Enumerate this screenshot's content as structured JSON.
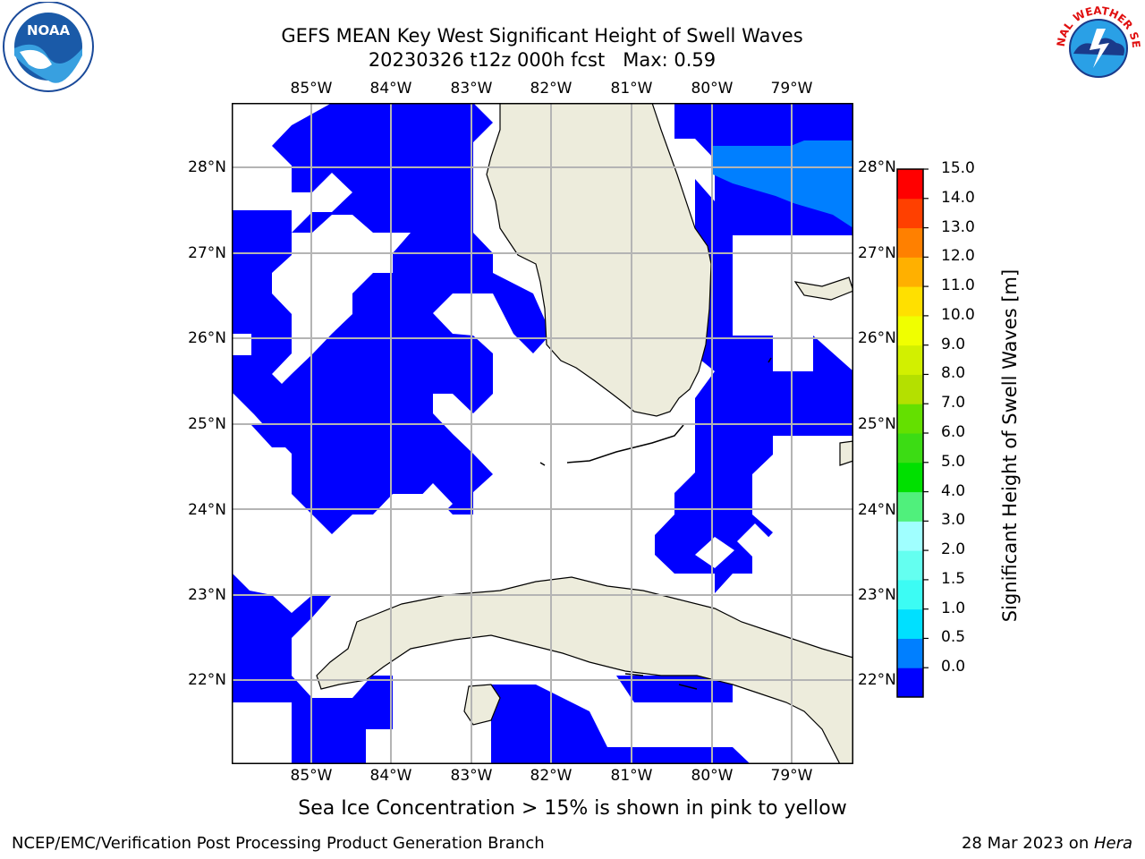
{
  "header": {
    "title_line1": "GEFS MEAN Key West Significant Height of Swell Waves",
    "title_line2": "20230326 t12z 000h fcst   Max: 0.59"
  },
  "logos": {
    "left": "NOAA",
    "right": "NATIONAL WEATHER SERVICE"
  },
  "map": {
    "lon_labels": [
      "85°W",
      "84°W",
      "83°W",
      "82°W",
      "81°W",
      "80°W",
      "79°W"
    ],
    "lat_labels": [
      "28°N",
      "27°N",
      "26°N",
      "25°N",
      "24°N",
      "23°N",
      "22°N"
    ],
    "lon_range": [
      -86.0,
      -78.3
    ],
    "lat_range": [
      21.0,
      28.8
    ],
    "colors": {
      "land": "#edecdc",
      "swell_0_05": "#0000ff",
      "swell_05_10": "#007fff",
      "grid": "#b4b4b4"
    }
  },
  "colorbar": {
    "label": "Significant Height of Swell Waves [m]",
    "ticks": [
      "15.0",
      "14.0",
      "13.0",
      "12.0",
      "11.0",
      "10.0",
      "9.0",
      "8.0",
      "7.0",
      "6.0",
      "5.0",
      "4.0",
      "3.0",
      "2.0",
      "1.5",
      "1.0",
      "0.5",
      "0.0"
    ],
    "colors_bottom_to_top": [
      "#0000ff",
      "#007fff",
      "#00e0ff",
      "#3cfcf4",
      "#64fff0",
      "#a0ffff",
      "#50f07c",
      "#00e000",
      "#3cdc14",
      "#64e000",
      "#b4e000",
      "#d2f000",
      "#f0ff00",
      "#ffe000",
      "#ffb000",
      "#ff8000",
      "#ff4000",
      "#ff0000"
    ]
  },
  "subtitle": "Sea Ice Concentration > 15% is shown in pink to yellow",
  "footer": {
    "left": "NCEP/EMC/Verification Post Processing Product Generation Branch",
    "right_prefix": "28 Mar 2023 on ",
    "right_host": "Hera"
  }
}
